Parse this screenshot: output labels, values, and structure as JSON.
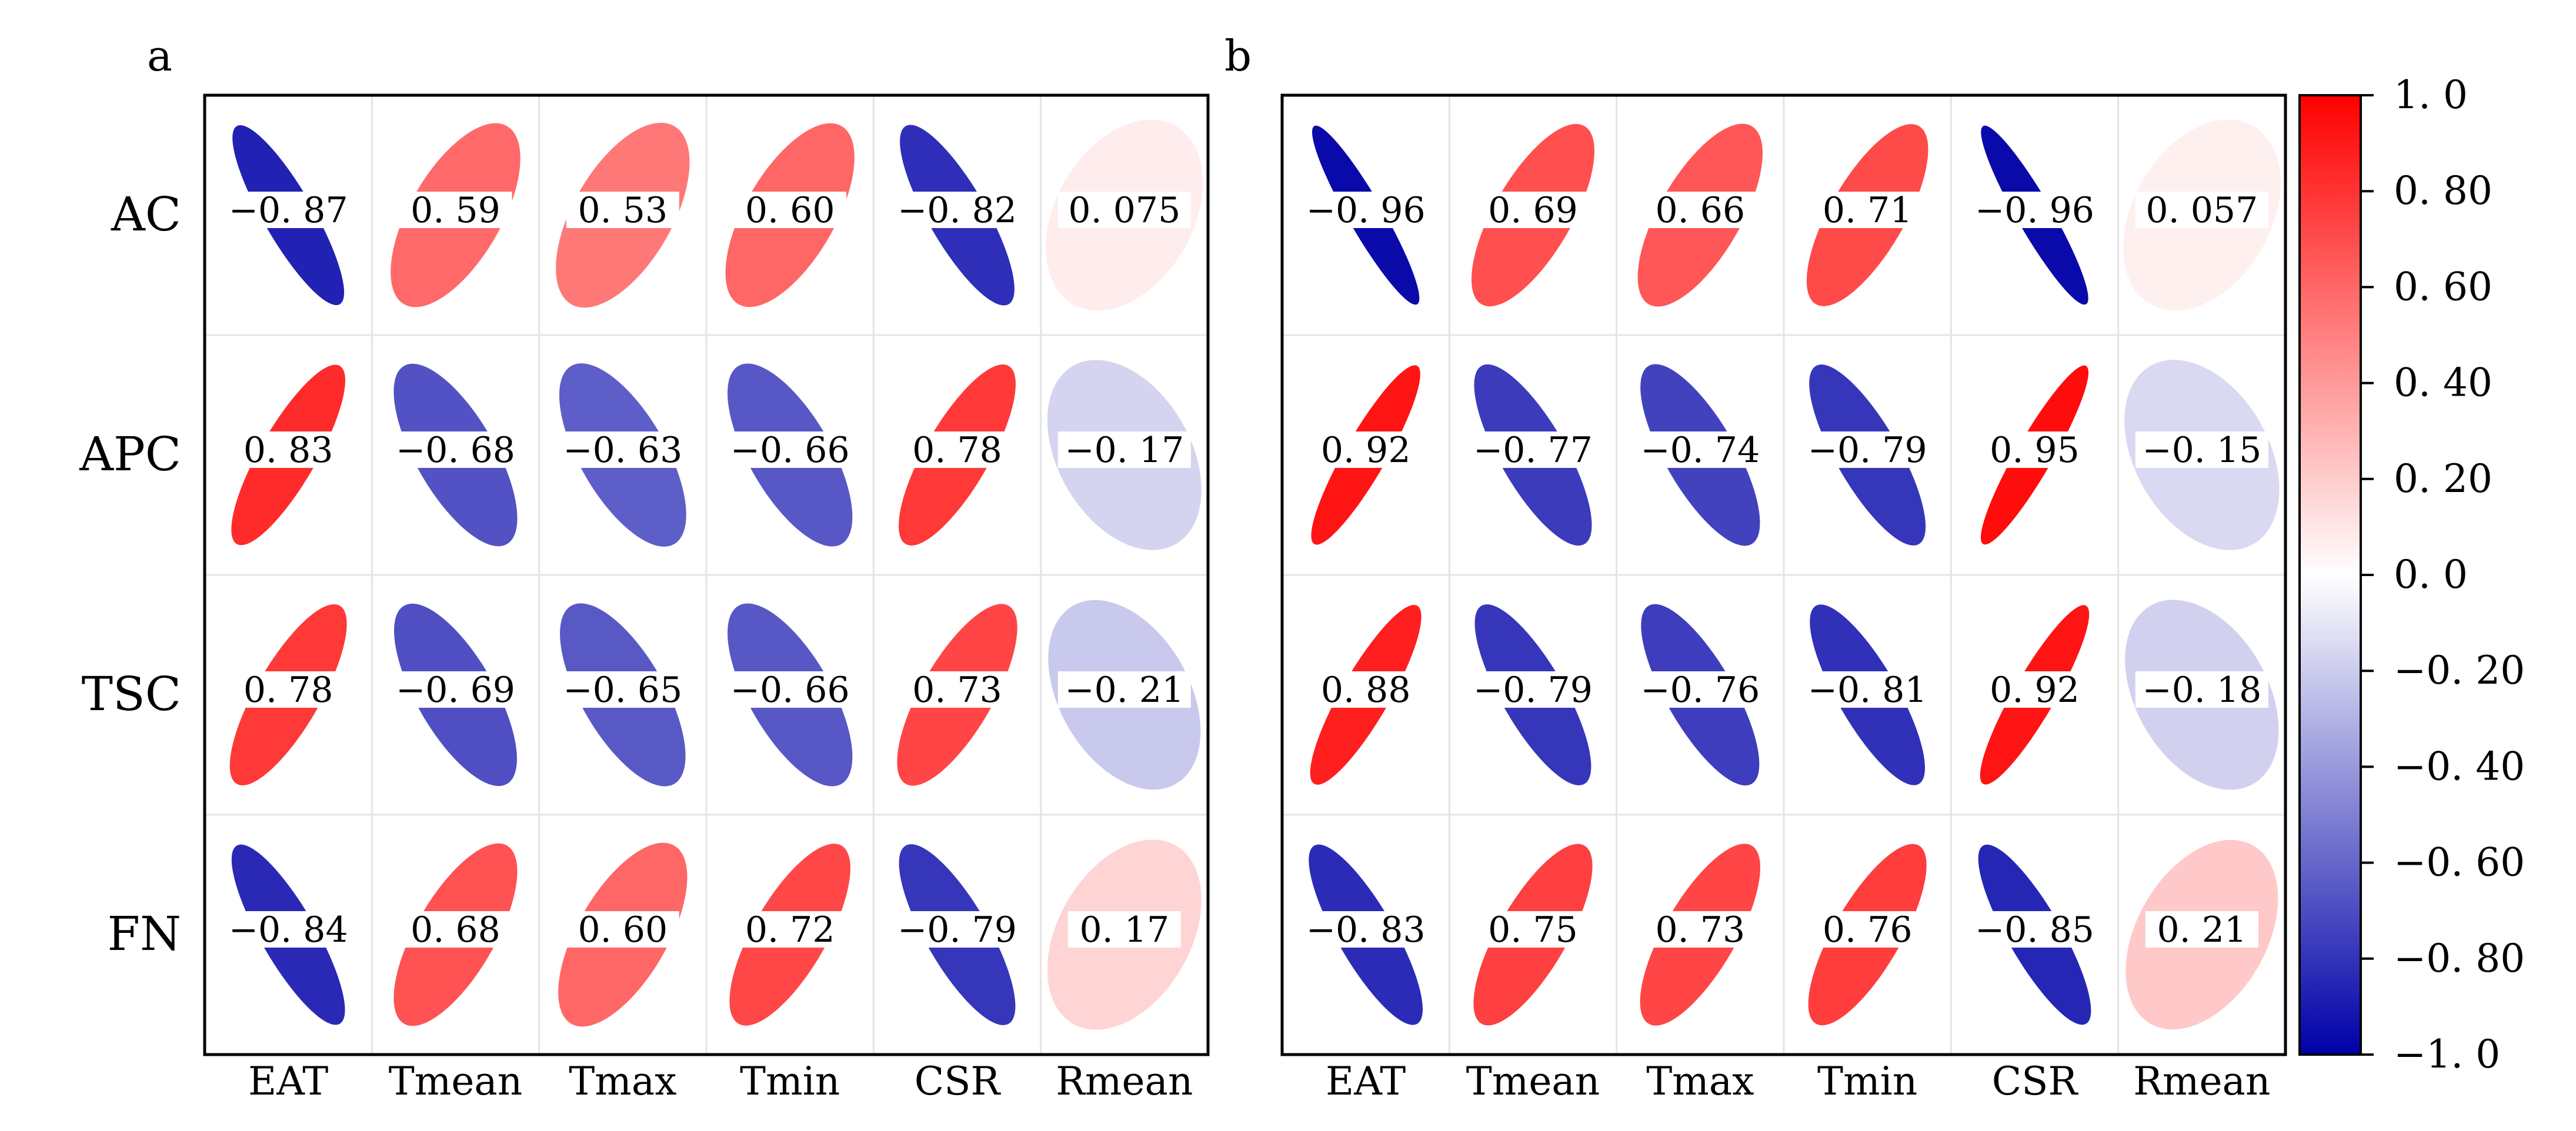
{
  "chart_data": [
    {
      "type": "heatmap",
      "panel_label": "a",
      "rows": [
        "AC",
        "APC",
        "TSC",
        "FN"
      ],
      "columns": [
        "EAT",
        "Tmean",
        "Tmax",
        "Tmin",
        "CSR",
        "Rmean"
      ],
      "values": [
        [
          -0.87,
          0.59,
          0.53,
          0.6,
          -0.82,
          0.075
        ],
        [
          0.83,
          -0.68,
          -0.63,
          -0.66,
          0.78,
          -0.17
        ],
        [
          0.78,
          -0.69,
          -0.65,
          -0.66,
          0.73,
          -0.21
        ],
        [
          -0.84,
          0.68,
          0.6,
          0.72,
          -0.79,
          0.17
        ]
      ],
      "value_labels": [
        [
          "−0. 87",
          "0. 59",
          "0. 53",
          "0. 60",
          "−0. 82",
          "0. 075"
        ],
        [
          "0. 83",
          "−0. 68",
          "−0. 63",
          "−0. 66",
          "0. 78",
          "−0. 17"
        ],
        [
          "0. 78",
          "−0. 69",
          "−0. 65",
          "−0. 66",
          "0. 73",
          "−0. 21"
        ],
        [
          "−0. 84",
          "0. 68",
          "0. 60",
          "0. 72",
          "−0. 79",
          "0. 17"
        ]
      ],
      "grid": true
    },
    {
      "type": "heatmap",
      "panel_label": "b",
      "rows": [
        "AC",
        "APC",
        "TSC",
        "FN"
      ],
      "columns": [
        "EAT",
        "Tmean",
        "Tmax",
        "Tmin",
        "CSR",
        "Rmean"
      ],
      "values": [
        [
          -0.96,
          0.69,
          0.66,
          0.71,
          -0.96,
          0.057
        ],
        [
          0.92,
          -0.77,
          -0.74,
          -0.79,
          0.95,
          -0.15
        ],
        [
          0.88,
          -0.79,
          -0.76,
          -0.81,
          0.92,
          -0.18
        ],
        [
          -0.83,
          0.75,
          0.73,
          0.76,
          -0.85,
          0.21
        ]
      ],
      "value_labels": [
        [
          "−0. 96",
          "0. 69",
          "0. 66",
          "0. 71",
          "−0. 96",
          "0. 057"
        ],
        [
          "0. 92",
          "−0. 77",
          "−0. 74",
          "−0. 79",
          "0. 95",
          "−0. 15"
        ],
        [
          "0. 88",
          "−0. 79",
          "−0. 76",
          "−0. 81",
          "0. 92",
          "−0. 18"
        ],
        [
          "−0. 83",
          "0. 75",
          "0. 73",
          "0. 76",
          "−0. 85",
          "0. 21"
        ]
      ],
      "grid": true
    }
  ],
  "colorbar": {
    "range": [
      -1.0,
      1.0
    ],
    "ticks": [
      1.0,
      0.8,
      0.6,
      0.4,
      0.2,
      0.0,
      -0.2,
      -0.4,
      -0.6,
      -0.8,
      -1.0
    ],
    "tick_labels": [
      "1. 0",
      "0. 80",
      "0. 60",
      "0. 40",
      "0. 20",
      "0. 0",
      "−0. 20",
      "−0. 40",
      "−0. 60",
      "−0. 80",
      "−1. 0"
    ],
    "color_negative": "#0000a8",
    "color_zero": "#ffffff",
    "color_positive": "#ff0000",
    "placement": "right"
  },
  "colors": {
    "frame": "#000000",
    "grid": "#e4e4e4",
    "label_box": "#ffffff",
    "text": "#000000"
  }
}
